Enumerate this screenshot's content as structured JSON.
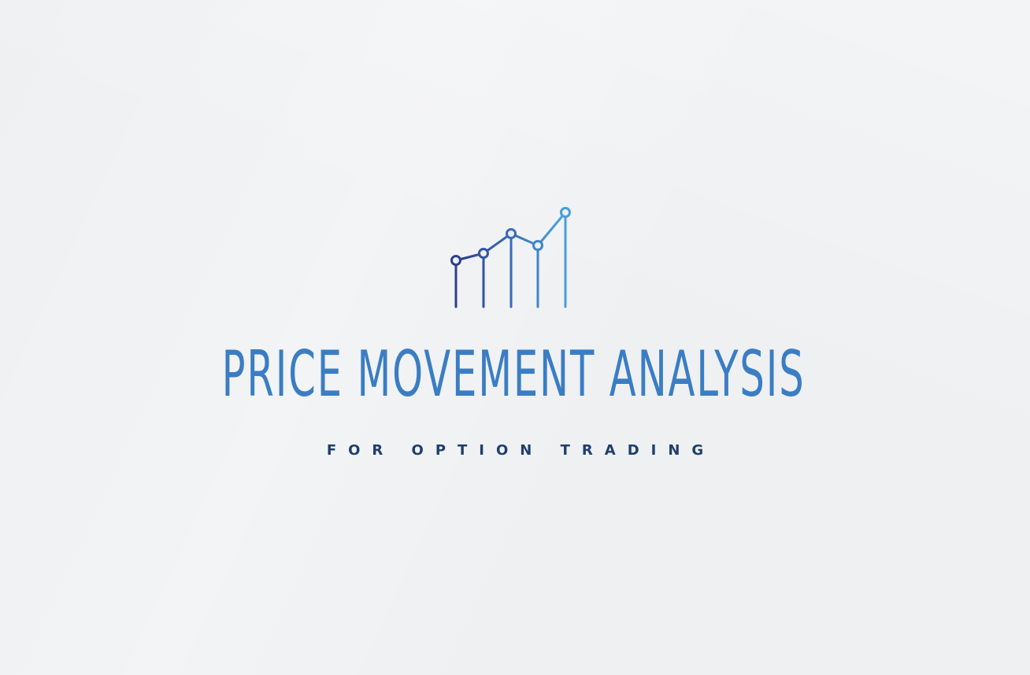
{
  "logo": {
    "title": "PRICE MOVEMENT ANALYSIS",
    "subtitle": "FOR OPTION TRADING",
    "icon": "line-chart-icon"
  },
  "colors": {
    "background": "#eef0f2",
    "title": "#3a7dc4",
    "subtitle": "#1f3f6c",
    "icon_gradient_start": "#2b3a8a",
    "icon_gradient_end": "#4aa6e0"
  }
}
